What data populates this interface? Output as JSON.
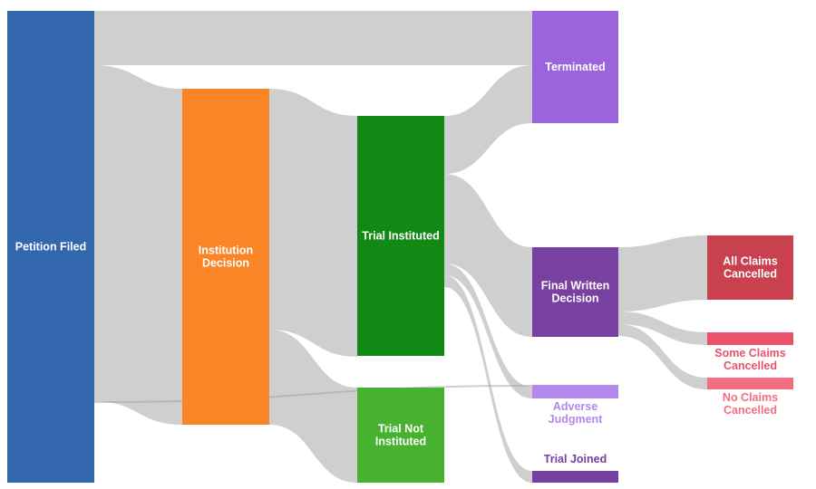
{
  "chart_data": {
    "type": "sankey",
    "link_color": "#a0a0a0",
    "nodes": [
      {
        "id": "petition",
        "label": [
          "Petition Filed"
        ],
        "color": "#3266ad",
        "label_color": "#ffffff"
      },
      {
        "id": "institution",
        "label": [
          "Institution",
          "Decision"
        ],
        "color": "#fa8526",
        "label_color": "#ffffff"
      },
      {
        "id": "instituted",
        "label": [
          "Trial Instituted"
        ],
        "color": "#128815",
        "label_color": "#ffffff"
      },
      {
        "id": "not_instituted",
        "label": [
          "Trial Not",
          "Instituted"
        ],
        "color": "#46b22f",
        "label_color": "#ffffff"
      },
      {
        "id": "terminated",
        "label": [
          "Terminated"
        ],
        "color": "#9b63dc",
        "label_color": "#ffffff"
      },
      {
        "id": "fwd",
        "label": [
          "Final Written",
          "Decision"
        ],
        "color": "#7840a0",
        "label_color": "#ffffff"
      },
      {
        "id": "adverse",
        "label": [
          "Adverse",
          "Judgment"
        ],
        "color": "#b388ec",
        "label_color": "#b388ec"
      },
      {
        "id": "joined",
        "label": [
          "Trial Joined"
        ],
        "color": "#7540a0",
        "label_color": "#7540a0"
      },
      {
        "id": "all",
        "label": [
          "All Claims",
          "Cancelled"
        ],
        "color": "#c9404f",
        "label_color": "#ffffff"
      },
      {
        "id": "some",
        "label": [
          "Some Claims",
          "Cancelled"
        ],
        "color": "#e9536a",
        "label_color": "#e9536a"
      },
      {
        "id": "none",
        "label": [
          "No Claims",
          "Cancelled"
        ],
        "color": "#f36e82",
        "label_color": "#f36e82"
      }
    ],
    "links": [
      {
        "source": "petition",
        "target": "terminated",
        "value": 60
      },
      {
        "source": "petition",
        "target": "institution",
        "value": 371
      },
      {
        "source": "petition",
        "target": "adverse",
        "value": 2
      },
      {
        "source": "institution",
        "target": "instituted",
        "value": 266
      },
      {
        "source": "institution",
        "target": "not_instituted",
        "value": 105
      },
      {
        "source": "instituted",
        "target": "terminated",
        "value": 64
      },
      {
        "source": "instituted",
        "target": "fwd",
        "value": 99
      },
      {
        "source": "instituted",
        "target": "adverse",
        "value": 13
      },
      {
        "source": "instituted",
        "target": "joined",
        "value": 13
      },
      {
        "source": "fwd",
        "target": "all",
        "value": 71
      },
      {
        "source": "fwd",
        "target": "some",
        "value": 14
      },
      {
        "source": "fwd",
        "target": "none",
        "value": 13
      }
    ]
  }
}
